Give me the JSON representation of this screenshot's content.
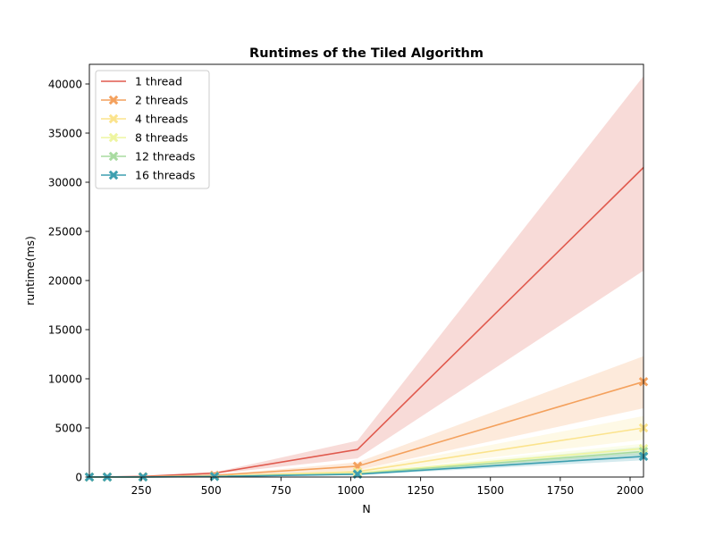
{
  "chart_data": {
    "type": "line",
    "title": "Runtimes of the Tiled Algorithm",
    "xlabel": "N",
    "ylabel": "runtime(ms)",
    "xlim": [
      64,
      2048
    ],
    "ylim": [
      0,
      42000
    ],
    "xticks": [
      250,
      500,
      750,
      1000,
      1250,
      1500,
      1750,
      2000
    ],
    "yticks": [
      0,
      5000,
      10000,
      15000,
      20000,
      25000,
      30000,
      35000,
      40000
    ],
    "grid": false,
    "legend_position": "top-left",
    "x": [
      64,
      128,
      256,
      512,
      1024,
      2048
    ],
    "series": [
      {
        "name": "1 thread",
        "color": "#e05a4e",
        "marker": "none",
        "values": [
          5,
          15,
          60,
          400,
          2800,
          31500
        ],
        "band_low": [
          5,
          15,
          50,
          320,
          1900,
          21000
        ],
        "band_high": [
          5,
          15,
          70,
          480,
          3700,
          40800
        ]
      },
      {
        "name": "2 threads",
        "color": "#f4a15d",
        "marker": "x",
        "values": [
          3,
          8,
          30,
          180,
          1100,
          9700
        ],
        "band_low": [
          3,
          8,
          25,
          150,
          700,
          7000
        ],
        "band_high": [
          3,
          8,
          35,
          210,
          1500,
          12300
        ]
      },
      {
        "name": "4 threads",
        "color": "#fbe38c",
        "marker": "x",
        "values": [
          2,
          5,
          18,
          100,
          550,
          5000
        ],
        "band_low": [
          2,
          5,
          14,
          80,
          400,
          3800
        ],
        "band_high": [
          2,
          5,
          22,
          120,
          700,
          6200
        ]
      },
      {
        "name": "8 threads",
        "color": "#eef5a0",
        "marker": "x",
        "values": [
          2,
          4,
          12,
          70,
          400,
          2900
        ],
        "band_low": [
          2,
          4,
          10,
          55,
          300,
          2300
        ],
        "band_high": [
          2,
          4,
          14,
          85,
          500,
          3400
        ]
      },
      {
        "name": "12 threads",
        "color": "#a8dba0",
        "marker": "x",
        "values": [
          2,
          4,
          10,
          60,
          330,
          2600
        ],
        "band_low": [
          2,
          4,
          8,
          50,
          250,
          2100
        ],
        "band_high": [
          2,
          4,
          12,
          70,
          420,
          3100
        ]
      },
      {
        "name": "16 threads",
        "color": "#3d9fb0",
        "marker": "x",
        "values": [
          2,
          3,
          9,
          55,
          280,
          2100
        ],
        "band_low": [
          2,
          3,
          7,
          45,
          210,
          1700
        ],
        "band_high": [
          2,
          3,
          11,
          65,
          350,
          2500
        ]
      }
    ]
  }
}
